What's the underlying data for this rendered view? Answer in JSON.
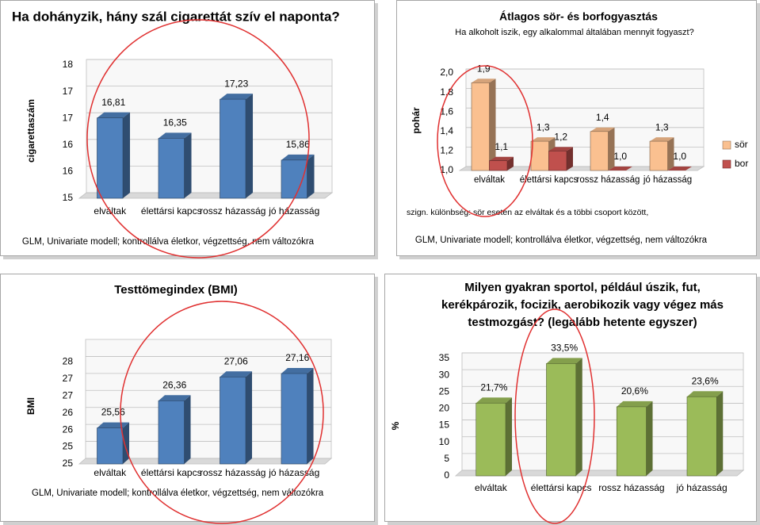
{
  "chart_data": [
    {
      "type": "bar",
      "title": "Ha dohányzik, hány szál cigarettát szív el naponta?",
      "y_label": "cigarettaszám",
      "categories": [
        "elváltak",
        "élettársi kapcs",
        "rossz házasság",
        "jó házasság"
      ],
      "values": [
        16.81,
        16.35,
        17.23,
        15.86
      ],
      "value_labels": [
        "16,81",
        "16,35",
        "17,23",
        "15,86"
      ],
      "color": "#4f81bd",
      "ylim": [
        15,
        18
      ],
      "yticks": [
        15,
        {
          "value": 15.6,
          "label": "16"
        },
        {
          "value": 16.2,
          "label": "16"
        },
        {
          "value": 16.8,
          "label": "17"
        },
        {
          "value": 17.4,
          "label": "17"
        },
        18
      ],
      "footnote": "GLM, Univariate modell; kontrollálva életkor, végzettség, nem változókra"
    },
    {
      "type": "grouped-bar",
      "title": "Átlagos sör- és borfogyasztás",
      "subtitle": "Ha alkoholt iszik, egy alkalommal általában mennyit fogyaszt?",
      "y_label": "pohár",
      "categories": [
        "elváltak",
        "élettársi kapcs",
        "rossz házasság",
        "jó házasság"
      ],
      "series": [
        {
          "name": "sör",
          "color": "#fac090",
          "values": [
            1.9,
            1.3,
            1.4,
            1.3
          ],
          "value_labels": [
            "1,9",
            "1,3",
            "1,4",
            "1,3"
          ]
        },
        {
          "name": "bor",
          "color": "#c0504d",
          "values": [
            1.1,
            1.2,
            1.0,
            1.0
          ],
          "value_labels": [
            "1,1",
            "1,2",
            "1,0",
            "1,0"
          ]
        }
      ],
      "ylim": [
        1,
        2
      ],
      "yticks": [
        {
          "value": 1,
          "label": "1,0"
        },
        {
          "value": 1.2,
          "label": "1,2"
        },
        {
          "value": 1.4,
          "label": "1,4"
        },
        {
          "value": 1.6,
          "label": "1,6"
        },
        {
          "value": 1.8,
          "label": "1,8"
        },
        {
          "value": 2,
          "label": "2,0"
        }
      ],
      "legend": "right",
      "note": "szign. különbség: sör esetén az elváltak és a többi csoport között,",
      "footnote": "GLM, Univariate modell; kontrollálva életkor, végzettség, nem változókra"
    },
    {
      "type": "bar",
      "title": "Testtömegindex (BMI)",
      "y_label": "BMI",
      "categories": [
        "elváltak",
        "élettársi kapcs",
        "rossz házasság",
        "jó házasság"
      ],
      "values": [
        25.56,
        26.36,
        27.06,
        27.16
      ],
      "value_labels": [
        "25,56",
        "26,36",
        "27,06",
        "27,16"
      ],
      "color": "#4f81bd",
      "ylim": [
        24.5,
        28
      ],
      "yticks": [
        {
          "value": 24.5,
          "label": "25"
        },
        25,
        {
          "value": 25.5,
          "label": "26"
        },
        26,
        {
          "value": 26.5,
          "label": "27"
        },
        27,
        {
          "value": 27.5,
          "label": "28"
        }
      ],
      "footnote": "GLM, Univariate modell; kontrollálva életkor, végzettség, nem változókra"
    },
    {
      "type": "bar",
      "title": "Milyen gyakran sportol, például úszik, fut, kerékpározik, focizik, aerobikozik vagy végez más testmozgást? (legalább hetente egyszer)",
      "y_label": "%",
      "categories": [
        "elváltak",
        "élettársi kapcs",
        "rossz házasság",
        "jó házasság"
      ],
      "values": [
        21.7,
        33.5,
        20.6,
        23.6
      ],
      "value_labels": [
        "21,7%",
        "33,5%",
        "20,6%",
        "23,6%"
      ],
      "color": "#9bbb59",
      "ylim": [
        0,
        35
      ],
      "yticks": [
        0,
        5,
        10,
        15,
        20,
        25,
        30,
        35
      ]
    }
  ]
}
